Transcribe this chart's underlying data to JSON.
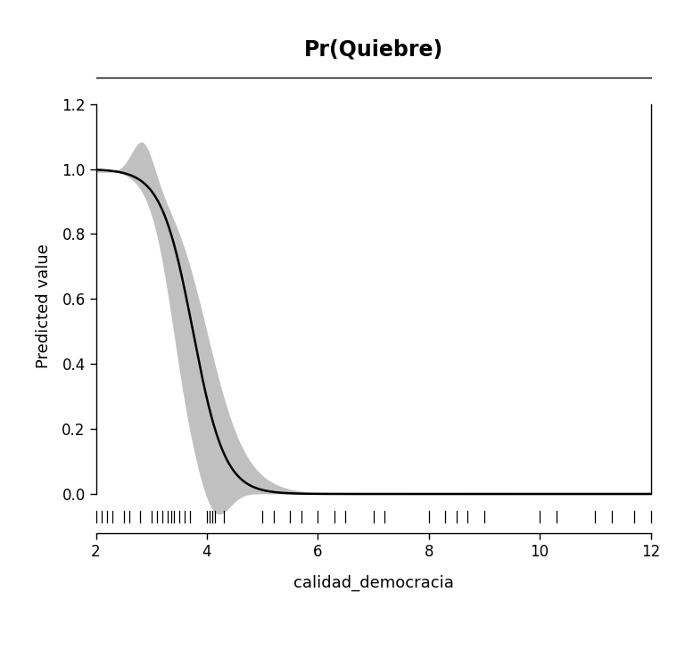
{
  "title": "Pr(Quiebre)",
  "xlabel": "calidad_democracia",
  "ylabel": "Predicted value",
  "xlim": [
    2,
    12
  ],
  "ylim": [
    -0.12,
    1.28
  ],
  "plot_ylim": [
    0.0,
    1.2
  ],
  "xticks": [
    2,
    4,
    6,
    8,
    10,
    12
  ],
  "yticks": [
    0.0,
    0.2,
    0.4,
    0.6,
    0.8,
    1.0,
    1.2
  ],
  "background_color": "#ffffff",
  "ci_color": "#c0c0c0",
  "line_color": "#000000",
  "title_fontsize": 17,
  "label_fontsize": 13,
  "tick_fontsize": 12
}
